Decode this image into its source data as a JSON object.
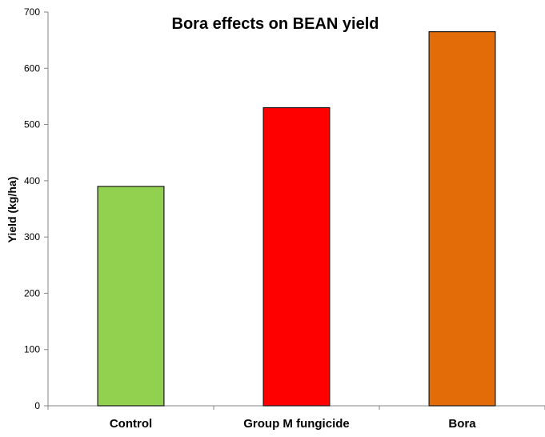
{
  "chart_data": {
    "type": "bar",
    "title": "Bora effects on BEAN yield",
    "xlabel": "",
    "ylabel": "Yield (kg/ha)",
    "categories": [
      "Control",
      "Group M fungicide",
      "Bora"
    ],
    "values": [
      390,
      530,
      665
    ],
    "bar_colors": [
      "#92D050",
      "#FF0000",
      "#E36C09"
    ],
    "ylim": [
      0,
      700
    ],
    "yticks": [
      0,
      100,
      200,
      300,
      400,
      500,
      600,
      700
    ],
    "grid": false,
    "legend": "none"
  }
}
